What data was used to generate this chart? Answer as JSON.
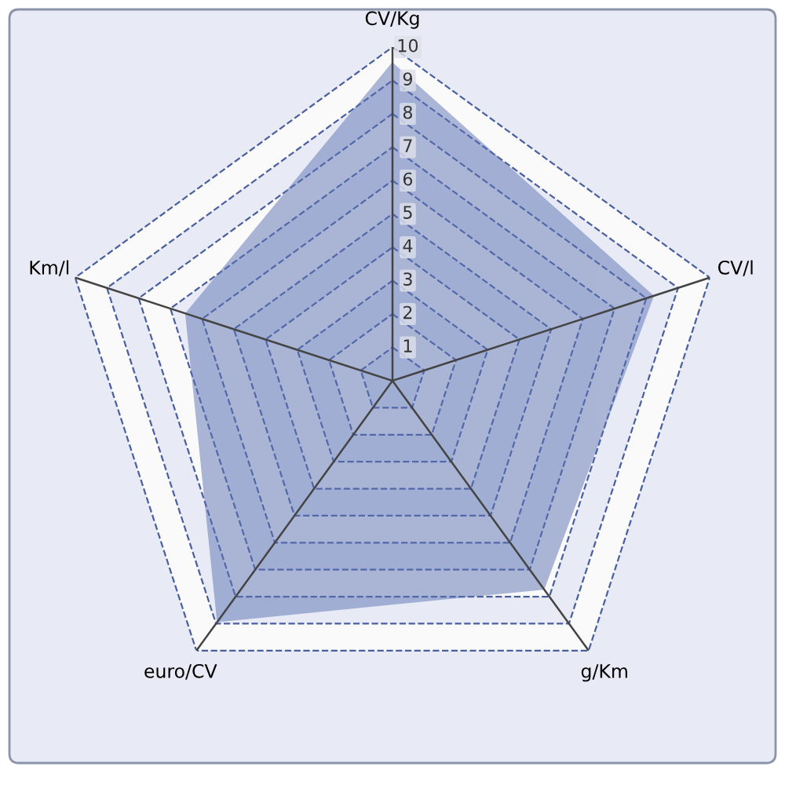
{
  "chart_data": {
    "type": "radar",
    "categories": [
      "CV/Kg",
      "CV/l",
      "g/Km",
      "euro/CV",
      "Km/l"
    ],
    "series": [
      {
        "color": "#5c72b4",
        "values": [
          9.5,
          8.2,
          7.7,
          8.9,
          6.5
        ]
      }
    ],
    "ylim": [
      0,
      10
    ],
    "yticks": [
      1,
      2,
      3,
      4,
      5,
      6,
      7,
      8,
      9,
      10
    ],
    "grid": true,
    "line_style": "dashed"
  }
}
